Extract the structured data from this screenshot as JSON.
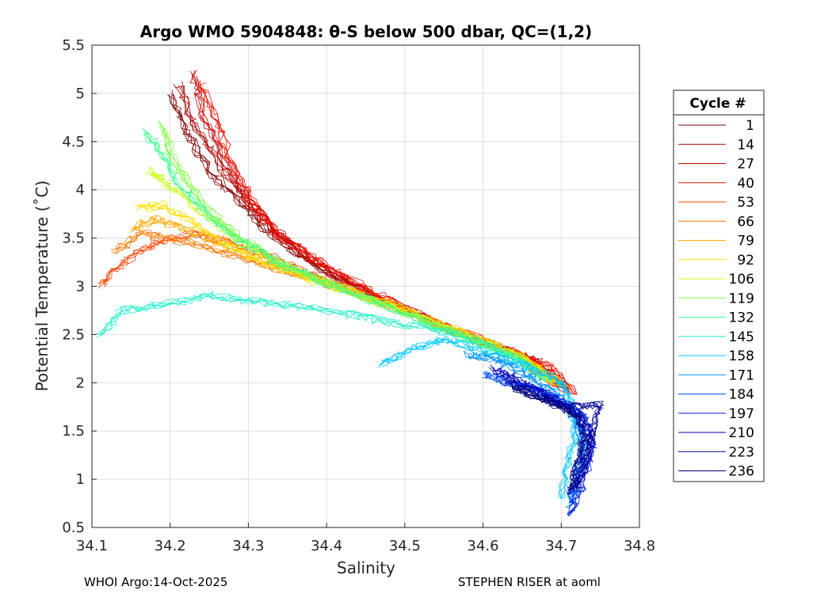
{
  "chart_data": {
    "type": "line",
    "title": "Argo WMO 5904848: θ-S below 500 dbar,  QC=(1,2)",
    "xlabel": "Salinity",
    "ylabel": "Potential Temperature (˚C)",
    "xlim": [
      34.1,
      34.8
    ],
    "ylim": [
      0.5,
      5.5
    ],
    "xticks": [
      34.1,
      34.2,
      34.3,
      34.4,
      34.5,
      34.6,
      34.7,
      34.8
    ],
    "xtick_labels": [
      "34.1",
      "34.2",
      "34.3",
      "34.4",
      "34.5",
      "34.6",
      "34.7",
      "34.8"
    ],
    "yticks": [
      0.5,
      1,
      1.5,
      2,
      2.5,
      3,
      3.5,
      4,
      4.5,
      5,
      5.5
    ],
    "ytick_labels": [
      "0.5",
      "1",
      "1.5",
      "2",
      "2.5",
      "3",
      "3.5",
      "4",
      "4.5",
      "5",
      "5.5"
    ],
    "grid": true,
    "legend": {
      "title": "Cycle #",
      "placement": "outside-right",
      "entries": [
        {
          "label": "1",
          "color": "#800000"
        },
        {
          "label": "14",
          "color": "#a50000"
        },
        {
          "label": "27",
          "color": "#c80000"
        },
        {
          "label": "40",
          "color": "#ee1000"
        },
        {
          "label": "53",
          "color": "#ff4000"
        },
        {
          "label": "66",
          "color": "#ff7800"
        },
        {
          "label": "79",
          "color": "#ffaa00"
        },
        {
          "label": "92",
          "color": "#ffe000"
        },
        {
          "label": "106",
          "color": "#ccff20"
        },
        {
          "label": "119",
          "color": "#80ff40"
        },
        {
          "label": "132",
          "color": "#40ff90"
        },
        {
          "label": "145",
          "color": "#20f0c8"
        },
        {
          "label": "158",
          "color": "#00c8ff"
        },
        {
          "label": "171",
          "color": "#0090ff"
        },
        {
          "label": "184",
          "color": "#0050ff"
        },
        {
          "label": "197",
          "color": "#0020e0"
        },
        {
          "label": "210",
          "color": "#0000b0"
        },
        {
          "label": "223",
          "color": "#000090"
        },
        {
          "label": "236",
          "color": "#000070"
        }
      ]
    },
    "series": [
      {
        "name": "1",
        "color": "#800000",
        "points": [
          [
            34.2,
            5.0
          ],
          [
            34.22,
            4.6
          ],
          [
            34.25,
            4.2
          ],
          [
            34.29,
            3.85
          ],
          [
            34.32,
            3.6
          ],
          [
            34.36,
            3.35
          ],
          [
            34.42,
            3.05
          ],
          [
            34.5,
            2.75
          ],
          [
            34.58,
            2.48
          ],
          [
            34.65,
            2.28
          ],
          [
            34.7,
            1.95
          ]
        ]
      },
      {
        "name": "14",
        "color": "#a50000",
        "points": [
          [
            34.21,
            5.1
          ],
          [
            34.23,
            4.7
          ],
          [
            34.26,
            4.3
          ],
          [
            34.3,
            3.9
          ],
          [
            34.33,
            3.6
          ],
          [
            34.37,
            3.33
          ],
          [
            34.43,
            3.02
          ],
          [
            34.51,
            2.72
          ],
          [
            34.59,
            2.45
          ],
          [
            34.66,
            2.25
          ],
          [
            34.71,
            1.92
          ]
        ]
      },
      {
        "name": "27",
        "color": "#c80000",
        "points": [
          [
            34.23,
            5.2
          ],
          [
            34.24,
            4.8
          ],
          [
            34.27,
            4.3
          ],
          [
            34.3,
            3.85
          ],
          [
            34.34,
            3.55
          ],
          [
            34.38,
            3.3
          ],
          [
            34.44,
            3.0
          ],
          [
            34.52,
            2.7
          ],
          [
            34.6,
            2.42
          ],
          [
            34.67,
            2.22
          ],
          [
            34.71,
            1.9
          ]
        ]
      },
      {
        "name": "40",
        "color": "#ee1000",
        "points": [
          [
            34.24,
            5.1
          ],
          [
            34.26,
            4.7
          ],
          [
            34.28,
            4.25
          ],
          [
            34.31,
            3.8
          ],
          [
            34.34,
            3.5
          ],
          [
            34.39,
            3.25
          ],
          [
            34.45,
            2.98
          ],
          [
            34.52,
            2.68
          ],
          [
            34.6,
            2.42
          ],
          [
            34.68,
            2.2
          ],
          [
            34.72,
            1.88
          ]
        ]
      },
      {
        "name": "53",
        "color": "#ff4000",
        "points": [
          [
            34.11,
            3.0
          ],
          [
            34.14,
            3.25
          ],
          [
            34.18,
            3.45
          ],
          [
            34.23,
            3.55
          ],
          [
            34.28,
            3.45
          ],
          [
            34.33,
            3.3
          ],
          [
            34.38,
            3.12
          ],
          [
            34.45,
            2.92
          ],
          [
            34.53,
            2.65
          ],
          [
            34.62,
            2.38
          ],
          [
            34.7,
            1.95
          ]
        ]
      },
      {
        "name": "66",
        "color": "#ff7800",
        "points": [
          [
            34.13,
            3.35
          ],
          [
            34.16,
            3.55
          ],
          [
            34.2,
            3.5
          ],
          [
            34.25,
            3.4
          ],
          [
            34.3,
            3.28
          ],
          [
            34.35,
            3.15
          ],
          [
            34.41,
            3.0
          ],
          [
            34.48,
            2.8
          ],
          [
            34.56,
            2.55
          ],
          [
            34.64,
            2.3
          ],
          [
            34.7,
            1.98
          ]
        ]
      },
      {
        "name": "79",
        "color": "#ffaa00",
        "points": [
          [
            34.15,
            3.6
          ],
          [
            34.18,
            3.7
          ],
          [
            34.22,
            3.6
          ],
          [
            34.26,
            3.45
          ],
          [
            34.31,
            3.3
          ],
          [
            34.36,
            3.15
          ],
          [
            34.42,
            2.98
          ],
          [
            34.5,
            2.76
          ],
          [
            34.58,
            2.5
          ],
          [
            34.65,
            2.28
          ],
          [
            34.71,
            1.96
          ]
        ]
      },
      {
        "name": "92",
        "color": "#ffe000",
        "points": [
          [
            34.16,
            3.8
          ],
          [
            34.19,
            3.85
          ],
          [
            34.22,
            3.7
          ],
          [
            34.26,
            3.5
          ],
          [
            34.3,
            3.32
          ],
          [
            34.36,
            3.12
          ],
          [
            34.42,
            2.97
          ],
          [
            34.5,
            2.75
          ],
          [
            34.58,
            2.49
          ],
          [
            34.65,
            2.27
          ],
          [
            34.7,
            1.97
          ]
        ]
      },
      {
        "name": "106",
        "color": "#ccff20",
        "points": [
          [
            34.17,
            4.2
          ],
          [
            34.19,
            4.1
          ],
          [
            34.22,
            3.9
          ],
          [
            34.26,
            3.65
          ],
          [
            34.3,
            3.4
          ],
          [
            34.35,
            3.2
          ],
          [
            34.42,
            2.98
          ],
          [
            34.5,
            2.74
          ],
          [
            34.58,
            2.48
          ],
          [
            34.64,
            2.3
          ],
          [
            34.69,
            2.0
          ]
        ]
      },
      {
        "name": "119",
        "color": "#80ff40",
        "points": [
          [
            34.19,
            4.7
          ],
          [
            34.2,
            4.4
          ],
          [
            34.22,
            4.1
          ],
          [
            34.25,
            3.8
          ],
          [
            34.29,
            3.5
          ],
          [
            34.34,
            3.25
          ],
          [
            34.41,
            3.0
          ],
          [
            34.49,
            2.76
          ],
          [
            34.57,
            2.5
          ],
          [
            34.64,
            2.29
          ],
          [
            34.69,
            2.0
          ]
        ]
      },
      {
        "name": "132",
        "color": "#40ff90",
        "points": [
          [
            34.17,
            4.6
          ],
          [
            34.19,
            4.35
          ],
          [
            34.21,
            4.05
          ],
          [
            34.24,
            3.8
          ],
          [
            34.28,
            3.52
          ],
          [
            34.33,
            3.28
          ],
          [
            34.4,
            3.02
          ],
          [
            34.48,
            2.78
          ],
          [
            34.56,
            2.53
          ],
          [
            34.63,
            2.3
          ],
          [
            34.68,
            2.02
          ]
        ]
      },
      {
        "name": "145",
        "color": "#20f0c8",
        "points": [
          [
            34.11,
            2.5
          ],
          [
            34.14,
            2.75
          ],
          [
            34.19,
            2.82
          ],
          [
            34.25,
            2.9
          ],
          [
            34.3,
            2.85
          ],
          [
            34.36,
            2.8
          ],
          [
            34.42,
            2.72
          ],
          [
            34.48,
            2.63
          ],
          [
            34.54,
            2.55
          ],
          [
            34.6,
            2.4
          ],
          [
            34.66,
            2.2
          ]
        ]
      },
      {
        "name": "158",
        "color": "#00c8ff",
        "points": [
          [
            34.47,
            2.2
          ],
          [
            34.51,
            2.35
          ],
          [
            34.55,
            2.45
          ],
          [
            34.59,
            2.35
          ],
          [
            34.63,
            2.25
          ],
          [
            34.66,
            2.15
          ],
          [
            34.69,
            2.05
          ],
          [
            34.71,
            1.9
          ],
          [
            34.72,
            1.6
          ],
          [
            34.71,
            1.2
          ],
          [
            34.7,
            0.8
          ]
        ]
      },
      {
        "name": "171",
        "color": "#0090ff",
        "points": [
          [
            34.58,
            2.3
          ],
          [
            34.61,
            2.25
          ],
          [
            34.64,
            2.15
          ],
          [
            34.67,
            2.02
          ],
          [
            34.7,
            1.85
          ],
          [
            34.72,
            1.6
          ],
          [
            34.73,
            1.3
          ],
          [
            34.72,
            1.0
          ],
          [
            34.71,
            0.7
          ]
        ]
      },
      {
        "name": "184",
        "color": "#0050ff",
        "points": [
          [
            34.6,
            2.1
          ],
          [
            34.63,
            2.0
          ],
          [
            34.66,
            1.95
          ],
          [
            34.69,
            1.85
          ],
          [
            34.72,
            1.7
          ],
          [
            34.73,
            1.4
          ],
          [
            34.72,
            1.1
          ],
          [
            34.71,
            0.75
          ]
        ]
      },
      {
        "name": "197",
        "color": "#0020e0",
        "points": [
          [
            34.62,
            2.05
          ],
          [
            34.65,
            1.98
          ],
          [
            34.68,
            1.9
          ],
          [
            34.7,
            1.8
          ],
          [
            34.73,
            1.65
          ],
          [
            34.74,
            1.35
          ],
          [
            34.73,
            1.05
          ],
          [
            34.72,
            0.8
          ],
          [
            34.71,
            0.62
          ]
        ]
      },
      {
        "name": "210",
        "color": "#0000b0",
        "points": [
          [
            34.61,
            2.15
          ],
          [
            34.64,
            2.05
          ],
          [
            34.67,
            1.92
          ],
          [
            34.7,
            1.78
          ],
          [
            34.73,
            1.62
          ],
          [
            34.74,
            1.38
          ],
          [
            34.73,
            1.1
          ],
          [
            34.71,
            0.85
          ]
        ]
      },
      {
        "name": "223",
        "color": "#000090",
        "points": [
          [
            34.63,
            2.0
          ],
          [
            34.66,
            1.9
          ],
          [
            34.69,
            1.8
          ],
          [
            34.72,
            1.75
          ],
          [
            34.75,
            1.78
          ],
          [
            34.74,
            1.5
          ],
          [
            34.73,
            1.2
          ],
          [
            34.72,
            0.9
          ]
        ]
      },
      {
        "name": "236",
        "color": "#000070",
        "points": [
          [
            34.64,
            1.95
          ],
          [
            34.67,
            1.85
          ],
          [
            34.7,
            1.75
          ],
          [
            34.72,
            1.65
          ],
          [
            34.73,
            1.45
          ],
          [
            34.72,
            1.15
          ],
          [
            34.71,
            0.88
          ]
        ]
      }
    ]
  },
  "footer": {
    "left": "WHOI Argo:14-Oct-2025",
    "right": "STEPHEN RISER at aoml"
  }
}
